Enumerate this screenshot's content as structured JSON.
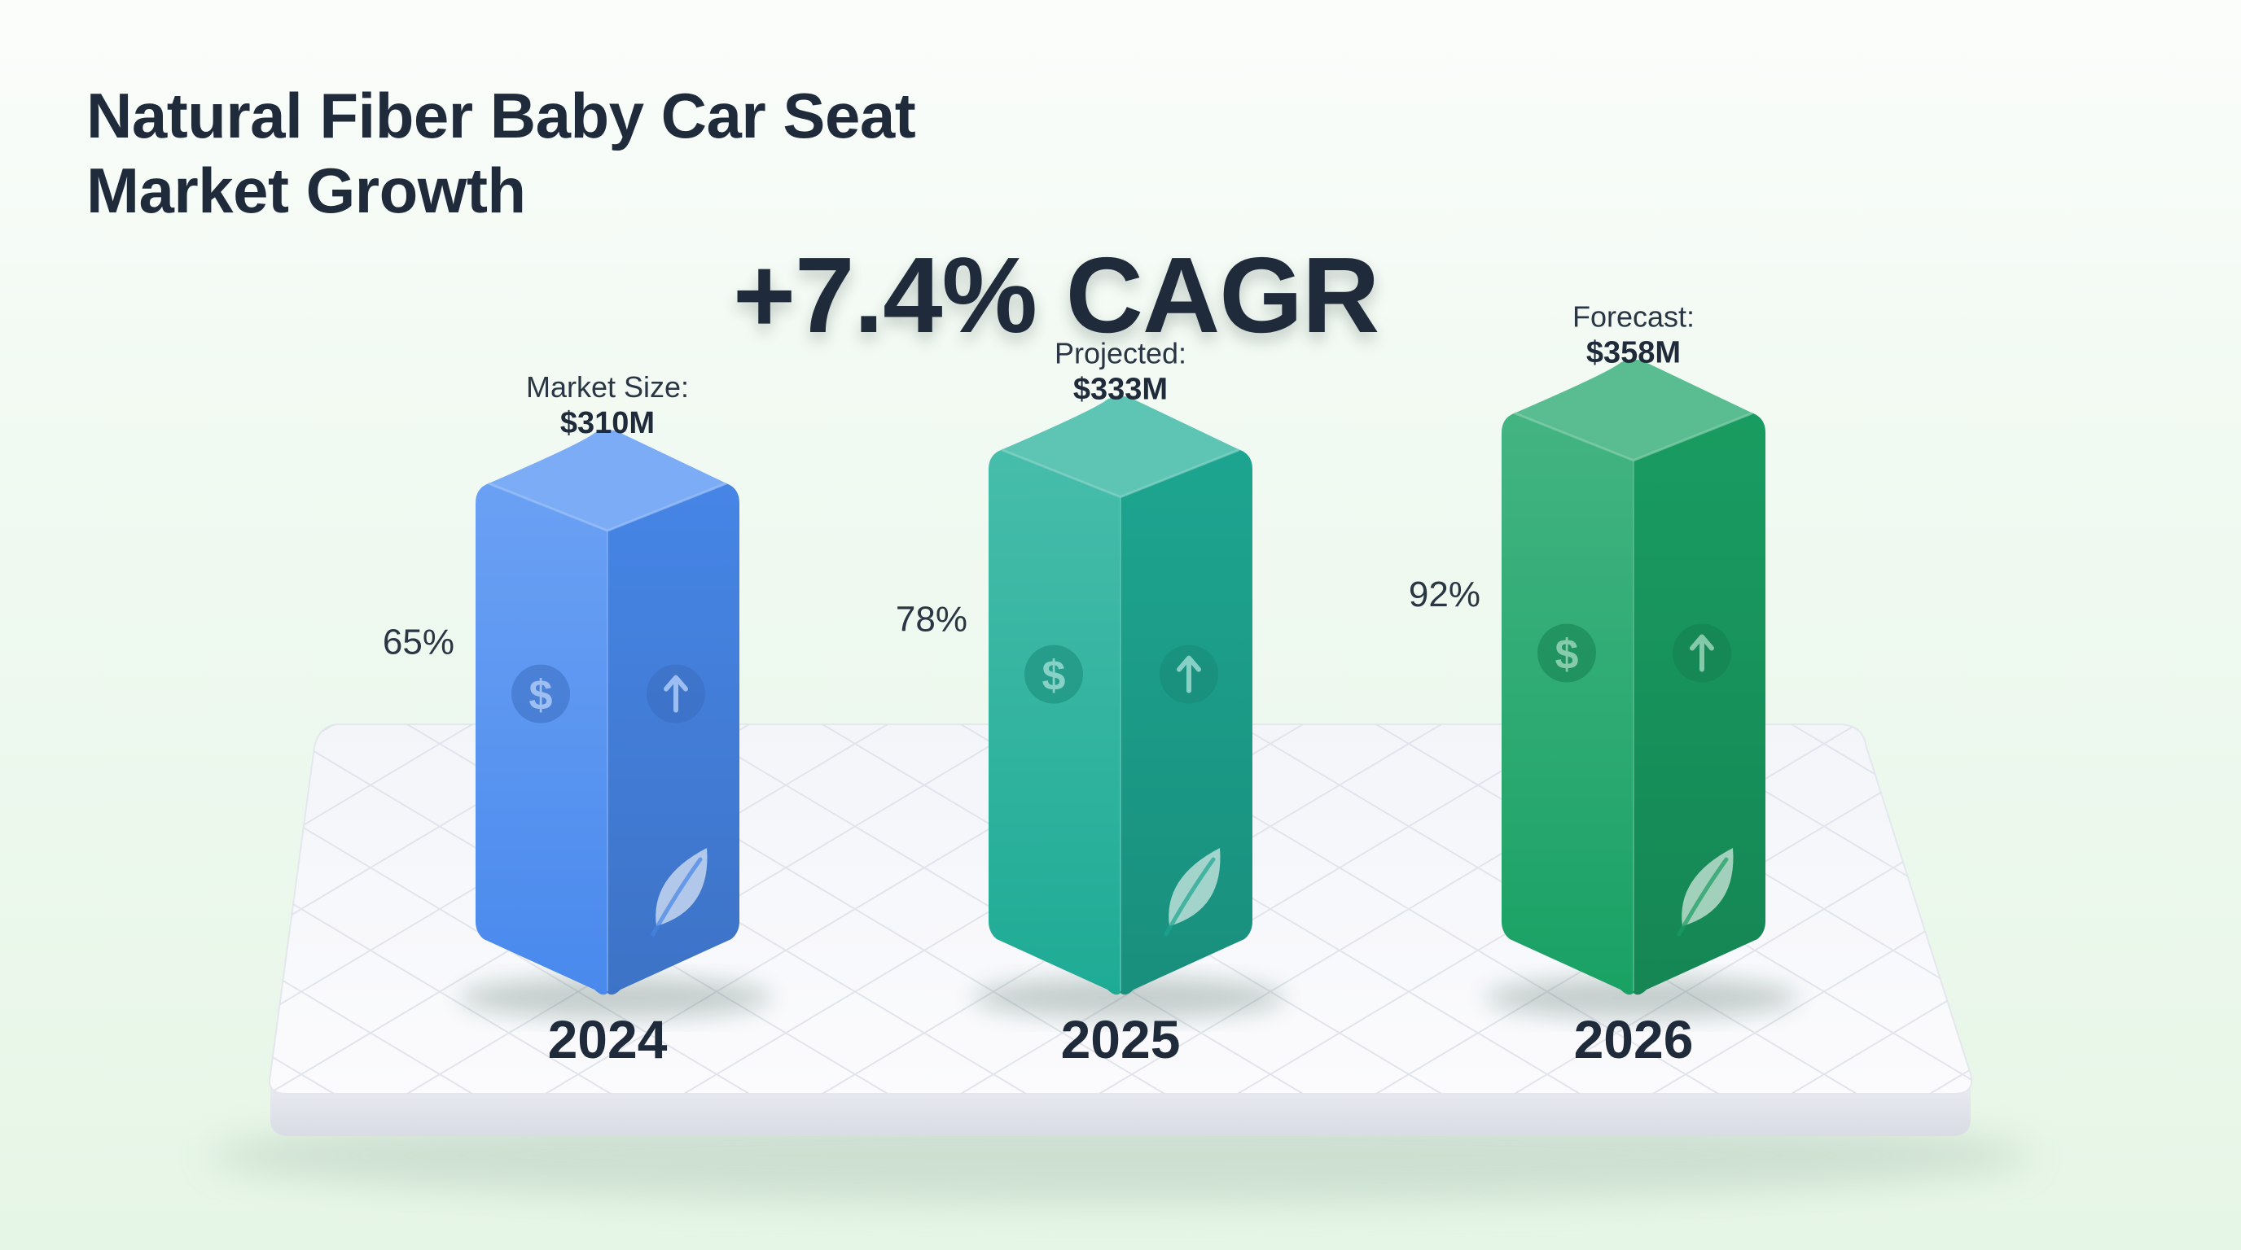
{
  "header": {
    "title_line1": "Natural Fiber Baby Car Seat",
    "title_line2": "Market Growth"
  },
  "headline": "+7.4% CAGR",
  "colors": {
    "bar_2024": "#4a8cf2",
    "bar_2025": "#1fae98",
    "bar_2026": "#1aa466",
    "text_dark": "#1f2b3b"
  },
  "icons": [
    "dollar-icon",
    "arrow-up-icon",
    "leaf-icon"
  ],
  "chart_data": {
    "type": "bar",
    "title": "Natural Fiber Baby Car Seat Market Growth",
    "unit": "$M",
    "categories": [
      "2024",
      "2025",
      "2026"
    ],
    "values": [
      310,
      333,
      358
    ],
    "value_labels": [
      {
        "caption": "Market Size:",
        "value": "$310M"
      },
      {
        "caption": "Projected:",
        "value": "$333M"
      },
      {
        "caption": "Forecast:",
        "value": "$358M"
      }
    ],
    "percent_labels": [
      "65%",
      "78%",
      "92%"
    ],
    "grid": true,
    "legend": "none"
  }
}
